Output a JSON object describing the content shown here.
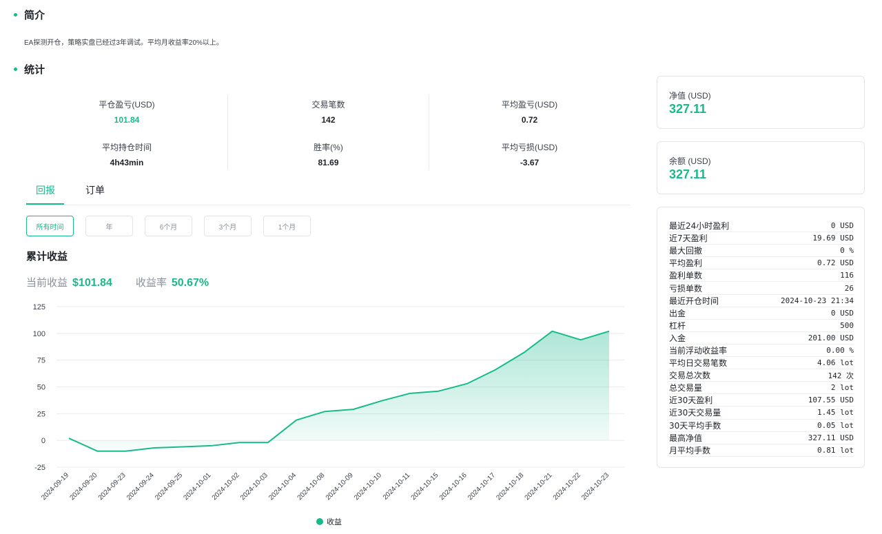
{
  "intro": {
    "title": "简介",
    "text": "EA探测开仓，策略实盘已经过3年调试。平均月收益率20%以上。"
  },
  "stats": {
    "title": "统计",
    "items": [
      {
        "label": "平仓盈亏(USD)",
        "value": "101.84"
      },
      {
        "label": "交易笔数",
        "value": "142"
      },
      {
        "label": "平均盈亏(USD)",
        "value": "0.72"
      },
      {
        "label": "平均持仓时间",
        "value": "4h43min"
      },
      {
        "label": "胜率(%)",
        "value": "81.69"
      },
      {
        "label": "平均亏损(USD)",
        "value": "-3.67"
      }
    ]
  },
  "tabs": [
    {
      "label": "回报",
      "active": true
    },
    {
      "label": "订单",
      "active": false
    }
  ],
  "ranges": [
    {
      "label": "所有时间",
      "active": true
    },
    {
      "label": "年",
      "active": false
    },
    {
      "label": "6个月",
      "active": false
    },
    {
      "label": "3个月",
      "active": false
    },
    {
      "label": "1个月",
      "active": false
    }
  ],
  "cumulative": {
    "title": "累计收益",
    "current_label": "当前收益",
    "current_value": "$101.84",
    "rate_label": "收益率",
    "rate_value": "50.67%"
  },
  "chart_data": {
    "type": "area",
    "x": [
      "2024-09-19",
      "2024-09-20",
      "2024-09-23",
      "2024-09-24",
      "2024-09-25",
      "2024-10-01",
      "2024-10-02",
      "2024-10-03",
      "2024-10-04",
      "2024-10-08",
      "2024-10-09",
      "2024-10-10",
      "2024-10-11",
      "2024-10-15",
      "2024-10-16",
      "2024-10-17",
      "2024-10-18",
      "2024-10-21",
      "2024-10-22",
      "2024-10-23"
    ],
    "series": [
      {
        "name": "收益",
        "values": [
          2,
          -10,
          -10,
          -7,
          -6,
          -5,
          -2,
          -2,
          19,
          27,
          29,
          37,
          44,
          46,
          53,
          66,
          82,
          102,
          94,
          102
        ],
        "color": "#18b98a"
      }
    ],
    "ylim": [
      -25,
      125
    ],
    "yticks": [
      125,
      100,
      75,
      50,
      25,
      0,
      -25
    ],
    "grid": true,
    "legend": "bottom-center"
  },
  "cards": {
    "equity_label": "净值 (USD)",
    "equity_value": "327.11",
    "balance_label": "余额 (USD)",
    "balance_value": "327.11"
  },
  "details": [
    {
      "label": "最近24小时盈利",
      "value": "0 USD"
    },
    {
      "label": "近7天盈利",
      "value": "19.69 USD"
    },
    {
      "label": "最大回撤",
      "value": "0 %"
    },
    {
      "label": "平均盈利",
      "value": "0.72 USD"
    },
    {
      "label": "盈利单数",
      "value": "116"
    },
    {
      "label": "亏损单数",
      "value": "26"
    },
    {
      "label": "最近开仓时间",
      "value": "2024-10-23 21:34"
    },
    {
      "label": "出金",
      "value": "0 USD"
    },
    {
      "label": "杠杆",
      "value": "500"
    },
    {
      "label": "入金",
      "value": "201.00 USD"
    },
    {
      "label": "当前浮动收益率",
      "value": "0.00 %"
    },
    {
      "label": "平均日交易笔数",
      "value": "4.06 lot"
    },
    {
      "label": "交易总次数",
      "value": "142 次"
    },
    {
      "label": "总交易量",
      "value": "2 lot"
    },
    {
      "label": "近30天盈利",
      "value": "107.55 USD"
    },
    {
      "label": "近30天交易量",
      "value": "1.45 lot"
    },
    {
      "label": "30天平均手数",
      "value": "0.05 lot"
    },
    {
      "label": "最高净值",
      "value": "327.11 USD"
    },
    {
      "label": "月平均手数",
      "value": "0.81 lot"
    }
  ]
}
